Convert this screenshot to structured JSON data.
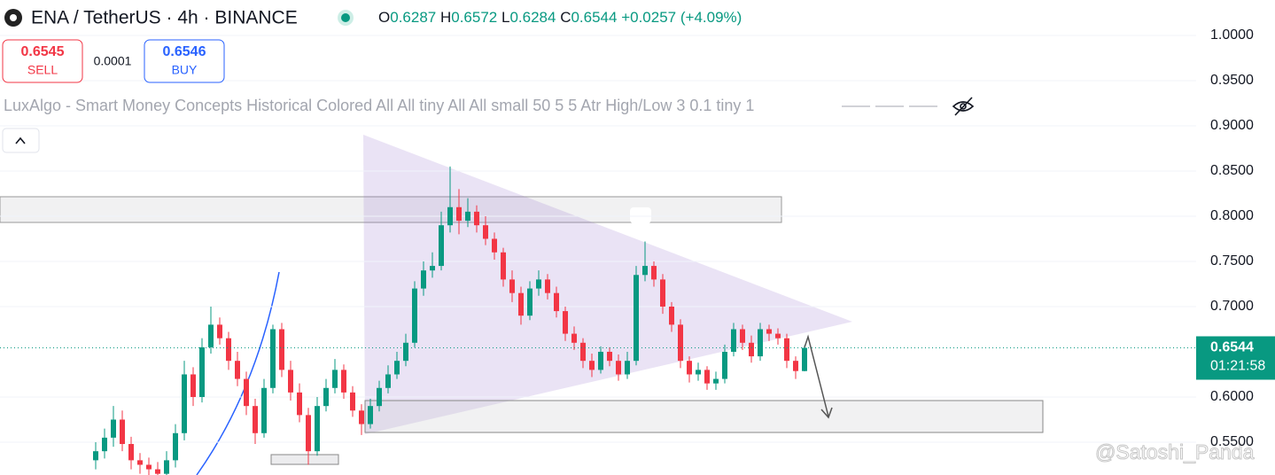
{
  "toolbar": {
    "symbol": "ENA / TetherUS · 4h · BINANCE",
    "ohlc": [
      {
        "label": "O",
        "value": "0.6287"
      },
      {
        "label": "H",
        "value": "0.6572"
      },
      {
        "label": "L",
        "value": "0.6284"
      },
      {
        "label": "C",
        "value": "0.6544"
      }
    ],
    "change": "+0.0257 (+4.09%)",
    "sell": {
      "price": "0.6545",
      "label": "SELL"
    },
    "spread": "0.0001",
    "buy": {
      "price": "0.6546",
      "label": "BUY"
    },
    "indicator": "LuxAlgo - Smart Money Concepts Historical Colored All All tiny All All small 50 5 5 Atr High/Low 3 0.1 tiny 1",
    "watermark": "@Satoshi_Panda"
  },
  "chart_data": {
    "type": "candlestick",
    "up_color": "#089981",
    "down_color": "#f23645",
    "ylim": [
      0.5137,
      1.0392
    ],
    "yticks": [
      {
        "value": 0.55,
        "label": "0.5500"
      },
      {
        "value": 0.6,
        "label": "0.6000"
      },
      {
        "value": 0.7,
        "label": "0.7000"
      },
      {
        "value": 0.75,
        "label": "0.7500"
      },
      {
        "value": 0.8,
        "label": "0.8000"
      },
      {
        "value": 0.85,
        "label": "0.8500"
      },
      {
        "value": 0.9,
        "label": "0.9000"
      },
      {
        "value": 0.95,
        "label": "0.9500"
      },
      {
        "value": 1,
        "label": "1.0000"
      }
    ],
    "grid": true,
    "countdown": "01:21:58",
    "open": [
      0.53,
      0.54,
      0.555,
      0.575,
      0.548,
      0.53,
      0.525,
      0.52,
      0.515,
      0.53,
      0.56,
      0.625,
      0.6,
      0.655,
      0.68,
      0.665,
      0.64,
      0.62,
      0.59,
      0.56,
      0.61,
      0.675,
      0.63,
      0.605,
      0.58,
      0.54,
      0.59,
      0.61,
      0.63,
      0.605,
      0.585,
      0.57,
      0.59,
      0.61,
      0.625,
      0.64,
      0.66,
      0.72,
      0.74,
      0.745,
      0.79,
      0.81,
      0.795,
      0.805,
      0.79,
      0.775,
      0.76,
      0.73,
      0.715,
      0.69,
      0.72,
      0.73,
      0.715,
      0.695,
      0.67,
      0.66,
      0.64,
      0.63,
      0.65,
      0.64,
      0.625,
      0.64,
      0.735,
      0.745,
      0.73,
      0.7,
      0.68,
      0.64,
      0.625,
      0.63,
      0.615,
      0.62,
      0.65,
      0.675,
      0.66,
      0.645,
      0.675,
      0.67,
      0.665,
      0.64,
      0.6287
    ],
    "high": [
      0.55,
      0.565,
      0.59,
      0.585,
      0.556,
      0.538,
      0.533,
      0.528,
      0.54,
      0.57,
      0.64,
      0.633,
      0.665,
      0.7,
      0.688,
      0.672,
      0.65,
      0.628,
      0.598,
      0.62,
      0.68,
      0.682,
      0.64,
      0.615,
      0.588,
      0.6,
      0.62,
      0.642,
      0.636,
      0.612,
      0.592,
      0.598,
      0.618,
      0.635,
      0.65,
      0.67,
      0.728,
      0.75,
      0.76,
      0.805,
      0.855,
      0.83,
      0.82,
      0.812,
      0.8,
      0.782,
      0.765,
      0.74,
      0.722,
      0.728,
      0.74,
      0.736,
      0.722,
      0.7,
      0.678,
      0.665,
      0.648,
      0.656,
      0.655,
      0.647,
      0.65,
      0.745,
      0.772,
      0.75,
      0.736,
      0.705,
      0.686,
      0.645,
      0.638,
      0.634,
      0.628,
      0.658,
      0.682,
      0.68,
      0.668,
      0.682,
      0.68,
      0.676,
      0.67,
      0.645,
      0.6572
    ],
    "low": [
      0.52,
      0.532,
      0.545,
      0.54,
      0.52,
      0.515,
      0.512,
      0.505,
      0.508,
      0.522,
      0.552,
      0.59,
      0.594,
      0.648,
      0.658,
      0.63,
      0.612,
      0.58,
      0.548,
      0.555,
      0.604,
      0.622,
      0.596,
      0.572,
      0.525,
      0.535,
      0.584,
      0.604,
      0.598,
      0.578,
      0.558,
      0.565,
      0.584,
      0.604,
      0.62,
      0.634,
      0.655,
      0.712,
      0.732,
      0.74,
      0.782,
      0.78,
      0.788,
      0.782,
      0.768,
      0.752,
      0.722,
      0.705,
      0.68,
      0.685,
      0.712,
      0.708,
      0.688,
      0.662,
      0.652,
      0.632,
      0.622,
      0.626,
      0.634,
      0.618,
      0.62,
      0.635,
      0.728,
      0.722,
      0.692,
      0.672,
      0.632,
      0.616,
      0.618,
      0.608,
      0.608,
      0.615,
      0.645,
      0.652,
      0.638,
      0.64,
      0.662,
      0.658,
      0.632,
      0.62,
      0.6284
    ],
    "close": [
      0.54,
      0.555,
      0.575,
      0.548,
      0.53,
      0.525,
      0.52,
      0.515,
      0.53,
      0.56,
      0.625,
      0.6,
      0.655,
      0.68,
      0.665,
      0.64,
      0.62,
      0.59,
      0.56,
      0.61,
      0.675,
      0.63,
      0.605,
      0.58,
      0.54,
      0.59,
      0.61,
      0.63,
      0.605,
      0.585,
      0.57,
      0.59,
      0.61,
      0.625,
      0.64,
      0.66,
      0.72,
      0.74,
      0.745,
      0.79,
      0.81,
      0.795,
      0.805,
      0.79,
      0.775,
      0.76,
      0.73,
      0.715,
      0.69,
      0.72,
      0.73,
      0.715,
      0.695,
      0.67,
      0.66,
      0.64,
      0.63,
      0.65,
      0.64,
      0.625,
      0.64,
      0.735,
      0.745,
      0.73,
      0.7,
      0.68,
      0.64,
      0.625,
      0.63,
      0.615,
      0.62,
      0.65,
      0.675,
      0.66,
      0.645,
      0.675,
      0.67,
      0.665,
      0.64,
      0.6287,
      0.6544
    ]
  }
}
